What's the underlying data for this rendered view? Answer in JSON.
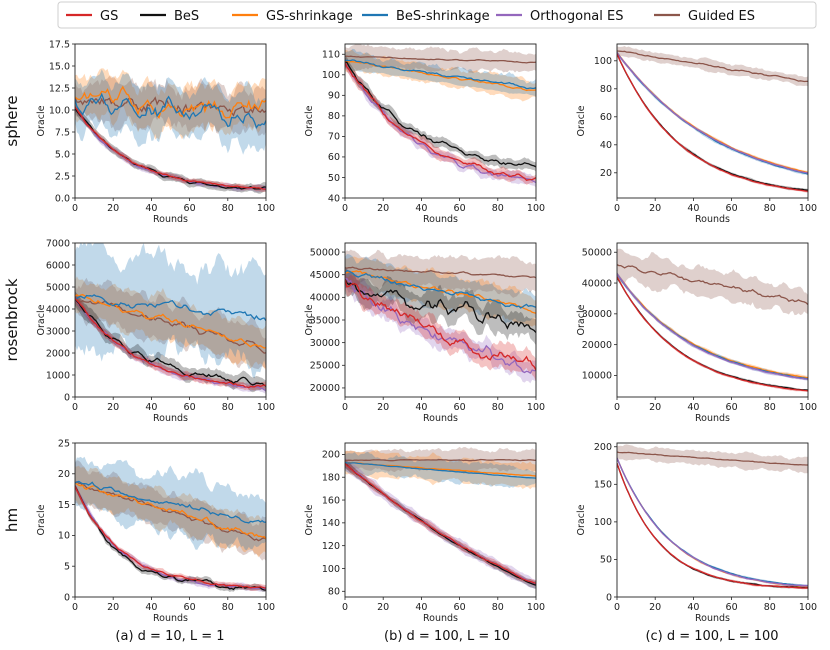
{
  "legend": {
    "entries": [
      {
        "name": "GS",
        "color": "#d62728"
      },
      {
        "name": "BeS",
        "color": "#111111"
      },
      {
        "name": "GS-shrinkage",
        "color": "#ff7f0e"
      },
      {
        "name": "BeS-shrinkage",
        "color": "#1f77b4"
      },
      {
        "name": "Orthogonal ES",
        "color": "#9467bd"
      },
      {
        "name": "Guided ES",
        "color": "#8c564b"
      }
    ]
  },
  "row_labels": [
    "sphere",
    "rosenbrock",
    "hm"
  ],
  "column_captions": [
    "(a) d = 10, L = 1",
    "(b) d = 100, L = 10",
    "(c) d = 100, L = 100"
  ],
  "chart_data": [
    {
      "id": "a-sphere",
      "type": "line",
      "xlabel": "Rounds",
      "ylabel": "Oracle",
      "xlim": [
        0,
        100
      ],
      "ylim": [
        0,
        17.5
      ],
      "xticks": [
        "0",
        "20",
        "40",
        "60",
        "80",
        "100"
      ],
      "yticks": [
        "0.0",
        "2.5",
        "5.0",
        "7.5",
        "10.0",
        "12.5",
        "15.0",
        "17.5"
      ],
      "series": [
        {
          "name": "GS",
          "start": 10.3,
          "end": 1.1,
          "k": 3.5,
          "noise": 0.15,
          "band": 0.3
        },
        {
          "name": "BeS",
          "start": 10.3,
          "end": 1.0,
          "k": 3.5,
          "noise": 0.2,
          "band": 0.45
        },
        {
          "name": "GS-shrinkage",
          "start": 11.5,
          "end": 10.2,
          "k": 1.0,
          "noise": 1.3,
          "band": 2.3
        },
        {
          "name": "BeS-shrinkage",
          "start": 11.2,
          "end": 8.6,
          "k": 1.0,
          "noise": 1.4,
          "band": 2.8
        },
        {
          "name": "Orthogonal ES",
          "start": 10.2,
          "end": 1.0,
          "k": 3.5,
          "noise": 0.15,
          "band": 0.35
        },
        {
          "name": "Guided ES",
          "start": 11.4,
          "end": 9.6,
          "k": 1.0,
          "noise": 1.1,
          "band": 2.2
        }
      ]
    },
    {
      "id": "b-sphere",
      "type": "line",
      "xlabel": "Rounds",
      "ylabel": "Oracle",
      "xlim": [
        0,
        100
      ],
      "ylim": [
        40,
        115
      ],
      "xticks": [
        "0",
        "20",
        "40",
        "60",
        "80",
        "100"
      ],
      "yticks": [
        "40",
        "50",
        "60",
        "70",
        "80",
        "90",
        "100",
        "110"
      ],
      "series": [
        {
          "name": "GS",
          "start": 106,
          "end": 49,
          "k": 2.5,
          "noise": 1.5,
          "band": 2.5
        },
        {
          "name": "BeS",
          "start": 106,
          "end": 55,
          "k": 2.5,
          "noise": 1.5,
          "band": 2.5
        },
        {
          "name": "GS-shrinkage",
          "start": 107,
          "end": 92,
          "k": 1.0,
          "noise": 0.8,
          "band": 4.5
        },
        {
          "name": "BeS-shrinkage",
          "start": 107,
          "end": 93.5,
          "k": 1.0,
          "noise": 0.8,
          "band": 4.0
        },
        {
          "name": "Orthogonal ES",
          "start": 106,
          "end": 48,
          "k": 2.5,
          "noise": 1.5,
          "band": 2.5
        },
        {
          "name": "Guided ES",
          "start": 109,
          "end": 106,
          "k": 1.0,
          "noise": 0.4,
          "band": 5.0
        }
      ]
    },
    {
      "id": "c-sphere",
      "type": "line",
      "xlabel": "Rounds",
      "ylabel": "Oracle",
      "xlim": [
        0,
        100
      ],
      "ylim": [
        2,
        112
      ],
      "xticks": [
        "0",
        "20",
        "40",
        "60",
        "80",
        "100"
      ],
      "yticks": [
        "20",
        "40",
        "60",
        "80",
        "100"
      ],
      "series": [
        {
          "name": "GS",
          "start": 105,
          "end": 7,
          "k": 3.0,
          "noise": 0.3,
          "band": 1.0
        },
        {
          "name": "BeS",
          "start": 105,
          "end": 7.5,
          "k": 3.0,
          "noise": 0.3,
          "band": 1.0
        },
        {
          "name": "GS-shrinkage",
          "start": 106,
          "end": 20,
          "k": 1.8,
          "noise": 0.3,
          "band": 1.2
        },
        {
          "name": "BeS-shrinkage",
          "start": 106,
          "end": 19,
          "k": 1.8,
          "noise": 0.3,
          "band": 1.2
        },
        {
          "name": "Orthogonal ES",
          "start": 106,
          "end": 19.5,
          "k": 1.8,
          "noise": 0.3,
          "band": 1.0
        },
        {
          "name": "Guided ES",
          "start": 107,
          "end": 85,
          "k": 1.0,
          "noise": 0.8,
          "band": 3.5
        }
      ]
    },
    {
      "id": "a-rosenbrock",
      "type": "line",
      "xlabel": "Rounds",
      "ylabel": "Oracle",
      "xlim": [
        0,
        100
      ],
      "ylim": [
        0,
        7000
      ],
      "xticks": [
        "0",
        "20",
        "40",
        "60",
        "80",
        "100"
      ],
      "yticks": [
        "0",
        "1000",
        "2000",
        "3000",
        "4000",
        "5000",
        "6000",
        "7000"
      ],
      "series": [
        {
          "name": "GS",
          "start": 4500,
          "end": 450,
          "k": 3.0,
          "noise": 90,
          "band": 180
        },
        {
          "name": "BeS",
          "start": 4500,
          "end": 650,
          "k": 3.0,
          "noise": 170,
          "band": 320
        },
        {
          "name": "GS-shrinkage",
          "start": 4600,
          "end": 2300,
          "k": 1.0,
          "noise": 200,
          "band": 900
        },
        {
          "name": "BeS-shrinkage",
          "start": 4500,
          "end": 3650,
          "k": 1.0,
          "noise": 220,
          "band": 2100
        },
        {
          "name": "Orthogonal ES",
          "start": 4500,
          "end": 420,
          "k": 3.0,
          "noise": 90,
          "band": 180
        },
        {
          "name": "Guided ES",
          "start": 4600,
          "end": 2150,
          "k": 1.0,
          "noise": 200,
          "band": 900
        }
      ]
    },
    {
      "id": "b-rosenbrock",
      "type": "line",
      "xlabel": "Rounds",
      "ylabel": "Oracle",
      "xlim": [
        0,
        100
      ],
      "ylim": [
        18000,
        52000
      ],
      "xticks": [
        "0",
        "20",
        "40",
        "60",
        "80",
        "100"
      ],
      "yticks": [
        "20000",
        "25000",
        "30000",
        "35000",
        "40000",
        "45000",
        "50000"
      ],
      "series": [
        {
          "name": "GS",
          "start": 44000,
          "end": 24500,
          "k": 1.2,
          "noise": 1600,
          "band": 2200
        },
        {
          "name": "BeS",
          "start": 44000,
          "end": 34000,
          "k": 1.2,
          "noise": 2000,
          "band": 2800
        },
        {
          "name": "GS-shrinkage",
          "start": 46000,
          "end": 37500,
          "k": 1.0,
          "noise": 700,
          "band": 3200
        },
        {
          "name": "BeS-shrinkage",
          "start": 45500,
          "end": 37500,
          "k": 1.0,
          "noise": 700,
          "band": 3200
        },
        {
          "name": "Orthogonal ES",
          "start": 44000,
          "end": 24000,
          "k": 1.2,
          "noise": 1600,
          "band": 2200
        },
        {
          "name": "Guided ES",
          "start": 46500,
          "end": 44500,
          "k": 1.0,
          "noise": 300,
          "band": 3300
        }
      ]
    },
    {
      "id": "c-rosenbrock",
      "type": "line",
      "xlabel": "Rounds",
      "ylabel": "Oracle",
      "xlim": [
        0,
        100
      ],
      "ylim": [
        3000,
        53000
      ],
      "xticks": [
        "0",
        "20",
        "40",
        "60",
        "80",
        "100"
      ],
      "yticks": [
        "10000",
        "20000",
        "30000",
        "40000",
        "50000"
      ],
      "series": [
        {
          "name": "GS",
          "start": 42000,
          "end": 5000,
          "k": 3.0,
          "noise": 120,
          "band": 400
        },
        {
          "name": "BeS",
          "start": 42000,
          "end": 5200,
          "k": 3.0,
          "noise": 120,
          "band": 400
        },
        {
          "name": "GS-shrinkage",
          "start": 43000,
          "end": 9300,
          "k": 2.4,
          "noise": 180,
          "band": 600
        },
        {
          "name": "BeS-shrinkage",
          "start": 43000,
          "end": 9000,
          "k": 2.4,
          "noise": 180,
          "band": 600
        },
        {
          "name": "Orthogonal ES",
          "start": 43000,
          "end": 8800,
          "k": 2.4,
          "noise": 180,
          "band": 500
        },
        {
          "name": "Guided ES",
          "start": 46000,
          "end": 33500,
          "k": 1.0,
          "noise": 900,
          "band": 4500
        }
      ]
    },
    {
      "id": "a-hm",
      "type": "line",
      "xlabel": "Rounds",
      "ylabel": "Oracle",
      "xlim": [
        0,
        100
      ],
      "ylim": [
        0,
        25
      ],
      "xticks": [
        "0",
        "20",
        "40",
        "60",
        "80",
        "100"
      ],
      "yticks": [
        "0",
        "5",
        "10",
        "15",
        "20",
        "25"
      ],
      "series": [
        {
          "name": "GS",
          "start": 18,
          "end": 1.5,
          "k": 4.0,
          "noise": 0.25,
          "band": 0.45
        },
        {
          "name": "BeS",
          "start": 18,
          "end": 1.5,
          "k": 4.5,
          "noise": 0.5,
          "band": 0.5
        },
        {
          "name": "GS-shrinkage",
          "start": 18.5,
          "end": 9.5,
          "k": 1.0,
          "noise": 0.7,
          "band": 2.8
        },
        {
          "name": "BeS-shrinkage",
          "start": 18.5,
          "end": 11.8,
          "k": 1.0,
          "noise": 0.6,
          "band": 4.5
        },
        {
          "name": "Orthogonal ES",
          "start": 18,
          "end": 1.4,
          "k": 4.0,
          "noise": 0.25,
          "band": 0.5
        },
        {
          "name": "Guided ES",
          "start": 18.5,
          "end": 9.0,
          "k": 1.0,
          "noise": 0.6,
          "band": 2.8
        }
      ]
    },
    {
      "id": "b-hm",
      "type": "line",
      "xlabel": "Rounds",
      "ylabel": "Oracle",
      "xlim": [
        0,
        100
      ],
      "ylim": [
        75,
        210
      ],
      "xticks": [
        "0",
        "20",
        "40",
        "60",
        "80",
        "100"
      ],
      "yticks": [
        "80",
        "100",
        "120",
        "140",
        "160",
        "180",
        "200"
      ],
      "series": [
        {
          "name": "GS",
          "start": 192,
          "end": 86,
          "k": 0.6,
          "noise": 0.8,
          "band": 3.0
        },
        {
          "name": "BeS",
          "start": 192,
          "end": 85,
          "k": 0.6,
          "noise": 0.8,
          "band": 3.0
        },
        {
          "name": "GS-shrinkage",
          "start": 193,
          "end": 181,
          "k": 1.0,
          "noise": 0.4,
          "band": 10
        },
        {
          "name": "BeS-shrinkage",
          "start": 193,
          "end": 179,
          "k": 1.0,
          "noise": 0.4,
          "band": 9
        },
        {
          "name": "Orthogonal ES",
          "start": 192,
          "end": 86,
          "k": 0.6,
          "noise": 0.8,
          "band": 5.0
        },
        {
          "name": "Guided ES",
          "start": 195,
          "end": 195,
          "k": 1.0,
          "noise": 0.5,
          "band": 9
        }
      ]
    },
    {
      "id": "c-hm",
      "type": "line",
      "xlabel": "Rounds",
      "ylabel": "Oracle",
      "xlim": [
        0,
        100
      ],
      "ylim": [
        0,
        205
      ],
      "xticks": [
        "0",
        "20",
        "40",
        "60",
        "80",
        "100"
      ],
      "yticks": [
        "0",
        "50",
        "100",
        "150",
        "200"
      ],
      "series": [
        {
          "name": "GS",
          "start": 178,
          "end": 12,
          "k": 4.5,
          "noise": 0.6,
          "band": 1.5
        },
        {
          "name": "BeS",
          "start": 178,
          "end": 12,
          "k": 4.5,
          "noise": 0.6,
          "band": 1.5
        },
        {
          "name": "GS-shrinkage",
          "start": 185,
          "end": 14,
          "k": 3.5,
          "noise": 0.5,
          "band": 1.5
        },
        {
          "name": "BeS-shrinkage",
          "start": 185,
          "end": 15,
          "k": 3.5,
          "noise": 0.5,
          "band": 1.5
        },
        {
          "name": "Orthogonal ES",
          "start": 185,
          "end": 14,
          "k": 3.5,
          "noise": 0.5,
          "band": 1.5
        },
        {
          "name": "Guided ES",
          "start": 193,
          "end": 175,
          "k": 1.0,
          "noise": 0.8,
          "band": 9
        }
      ]
    }
  ]
}
